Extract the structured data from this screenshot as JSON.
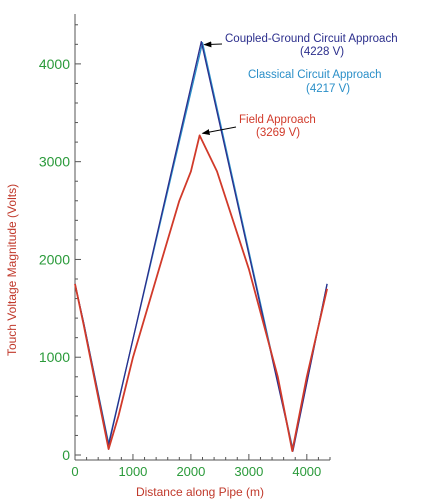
{
  "chart_data": {
    "type": "line",
    "title": "",
    "xlabel": "Distance along Pipe (m)",
    "ylabel": "Touch Voltage Magnitude (Volts)",
    "xlim": [
      0,
      4400
    ],
    "ylim": [
      0,
      4500
    ],
    "x_ticks": [
      0,
      1000,
      2000,
      3000,
      4000
    ],
    "y_ticks": [
      0,
      1000,
      2000,
      3000,
      4000
    ],
    "x_tick_labels": [
      "0",
      "1000",
      "2000",
      "3000",
      "4000"
    ],
    "y_tick_labels": [
      "0",
      "1000",
      "2000",
      "3000",
      "4000"
    ],
    "series": [
      {
        "id": "classical",
        "color": "#2a8fc8",
        "points": [
          [
            0,
            1750
          ],
          [
            150,
            1350
          ],
          [
            580,
            120
          ],
          [
            2200,
            4217
          ],
          [
            3760,
            60
          ],
          [
            4350,
            1750
          ]
        ]
      },
      {
        "id": "coupled",
        "color": "#2b2e8c",
        "points": [
          [
            0,
            1750
          ],
          [
            150,
            1350
          ],
          [
            580,
            100
          ],
          [
            2180,
            4228
          ],
          [
            3760,
            40
          ],
          [
            4350,
            1750
          ]
        ]
      },
      {
        "id": "field",
        "color": "#d13a2a",
        "points": [
          [
            0,
            1750
          ],
          [
            150,
            1330
          ],
          [
            580,
            60
          ],
          [
            750,
            400
          ],
          [
            1000,
            1000
          ],
          [
            1500,
            2000
          ],
          [
            1800,
            2600
          ],
          [
            2000,
            2900
          ],
          [
            2150,
            3269
          ],
          [
            2450,
            2900
          ],
          [
            3000,
            1900
          ],
          [
            3500,
            800
          ],
          [
            3750,
            40
          ],
          [
            4000,
            800
          ],
          [
            4350,
            1700
          ]
        ]
      }
    ],
    "annotations": [
      {
        "series": "coupled",
        "lines": [
          "Coupled-Ground Circuit Approach",
          "(4228 V)"
        ],
        "point": [
          2180,
          4228
        ],
        "color": "#2b2e8c"
      },
      {
        "series": "classical",
        "lines": [
          "Classical Circuit Approach",
          "(4217 V)"
        ],
        "color": "#2a8fc8"
      },
      {
        "series": "field",
        "lines": [
          "Field Approach",
          "(3269 V)"
        ],
        "point": [
          2150,
          3269
        ],
        "color": "#d13a2a"
      }
    ]
  }
}
